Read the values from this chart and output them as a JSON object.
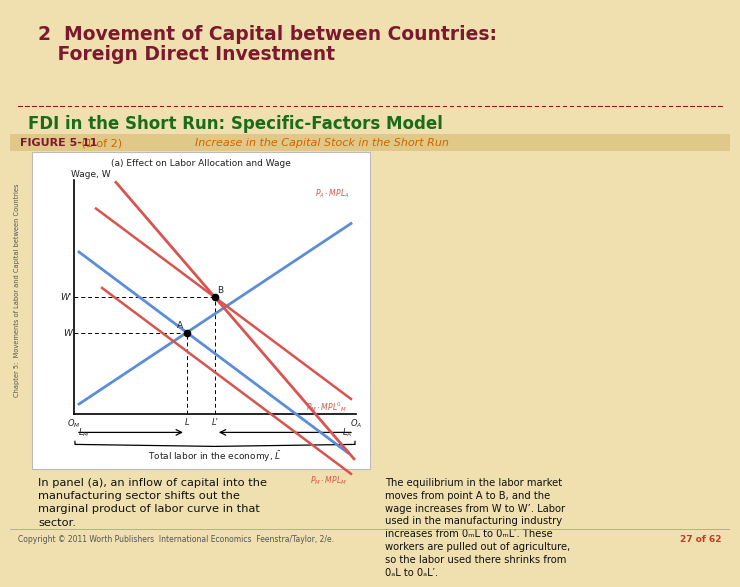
{
  "bg_color": "#f0e0b0",
  "title_text_1": "2  Movement of Capital between Countries:",
  "title_text_2": "   Foreign Direct Investment",
  "title_color": "#7b1a2e",
  "title_fontsize": 13.5,
  "subtitle_text": "FDI in the Short Run: Specific-Factors Model",
  "subtitle_color": "#1a6b1a",
  "subtitle_fontsize": 12,
  "divider_color": "#8b2020",
  "figure_label": "FIGURE 5-11",
  "figure_label_color": "#7b1a2e",
  "figure_sub": " (1 of 2)",
  "figure_sub_color": "#cc6600",
  "figure_caption": "Increase in the Capital Stock in the Short Run",
  "figure_caption_color": "#cc6600",
  "panel_title": "(a) Effect on Labor Allocation and Wage",
  "ylabel": "Wage, W",
  "copyright": "Copyright © 2011 Worth Publishers  International Economics  Feenstra/Taylor, 2/e.",
  "page": "27 of 62",
  "left_text": "In panel (a), an inflow of capital into the\nmanufacturing sector shifts out the\nmarginal product of labor curve in that\nsector.",
  "right_text": "The equilibrium in the labor market\nmoves from point A to B, and the\nwage increases from W to W’. Labor\nused in the manufacturing industry\nincreases from 0ₘL to 0ₘL′. These\nworkers are pulled out of agriculture,\nso the labor used there shrinks from\n0ₐL to 0ₐL′.",
  "rotated_label": "Chapter 5:  Movements of Labor and Capital between Countries",
  "panel_bg": "#ffffff",
  "outer_bg": "#f0e0b0",
  "title_bg": "#f0e0b0",
  "figbar_bg": "#e0c888"
}
